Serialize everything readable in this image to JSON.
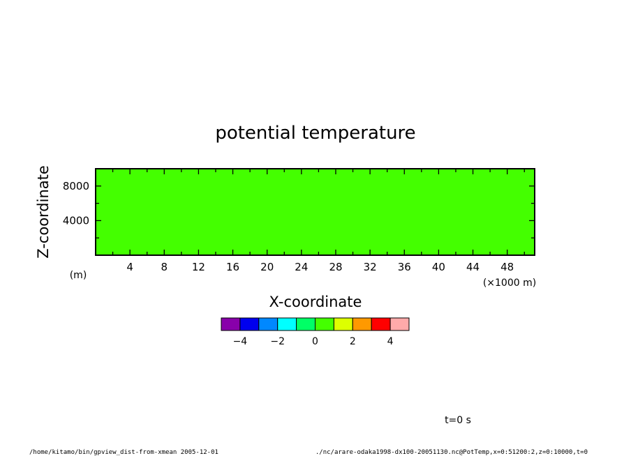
{
  "chart_data": {
    "type": "heatmap",
    "title": "potential temperature",
    "xlabel": "X-coordinate",
    "ylabel": "Z-coordinate",
    "x_unit": "(×1000 m)",
    "y_unit": "(m)",
    "x_range": [
      0,
      51.2
    ],
    "y_range": [
      0,
      10000
    ],
    "x_ticks": [
      4,
      8,
      12,
      16,
      20,
      24,
      28,
      32,
      36,
      40,
      44,
      48
    ],
    "y_ticks": [
      4000,
      8000
    ],
    "fill_color": "#44ff00",
    "field_value": "uniform",
    "colorbar": {
      "colors": [
        "#8800aa",
        "#0000ee",
        "#0088ff",
        "#00ffff",
        "#00ff66",
        "#44ff00",
        "#ddff00",
        "#ff9900",
        "#ff0000",
        "#ffaaaa"
      ],
      "bounds": [
        -5,
        -4,
        -3,
        -2,
        -1,
        0,
        1,
        2,
        3,
        4,
        5
      ],
      "tick_labels": [
        "−4",
        "−2",
        "0",
        "2",
        "4"
      ],
      "tick_values": [
        -4,
        -2,
        0,
        2,
        4
      ]
    },
    "time_label": "t=0 s"
  },
  "footer": {
    "left": "/home/kitamo/bin/gpview_dist-from-xmean   2005-12-01",
    "right": "./nc/arare-odaka1998-dx100-20051130.nc@PotTemp,x=0:51200:2,z=0:10000,t=0"
  }
}
